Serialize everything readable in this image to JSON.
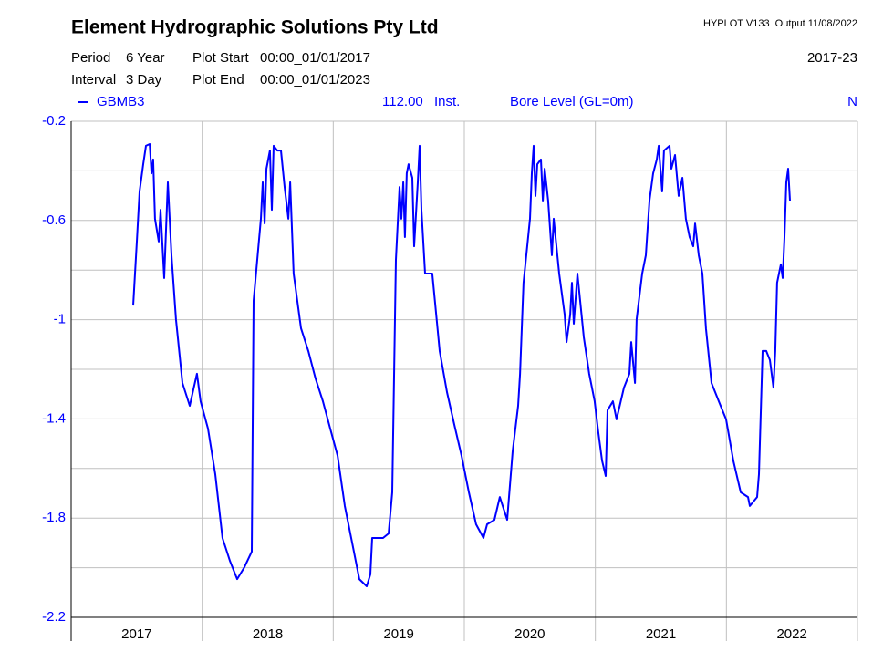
{
  "chart_data": {
    "type": "line",
    "title": "Element Hydrographic Solutions Pty Ltd",
    "software": "HYPLOT V133  Output 11/08/2022",
    "period_label": "Period",
    "period": "6 Year",
    "interval_label": "Interval",
    "interval": "3 Day",
    "plot_start_label": "Plot Start",
    "plot_start": "00:00_01/01/2017",
    "plot_end_label": "Plot End",
    "plot_end": "00:00_01/01/2023",
    "range_label": "2017-23",
    "variable_code": "112.00",
    "data_type": "Inst.",
    "variable": "Bore Level (GL=0m)",
    "flag": "N",
    "xlim": [
      2017,
      2023
    ],
    "xticks": [
      2017,
      2018,
      2019,
      2020,
      2021,
      2022
    ],
    "ylim": [
      -2.2,
      -0.2
    ],
    "yticks": [
      -0.2,
      -0.6,
      -1,
      -1.4,
      -1.8,
      -2.2
    ],
    "y_minor_ticks": [
      -0.4,
      -0.8,
      -1.2,
      -1.6,
      -2.0
    ],
    "grid": true,
    "series": [
      {
        "name": "GBMB3",
        "color": "#0000ff",
        "x": [
          2017.473,
          2017.501,
          2017.522,
          2017.55,
          2017.571,
          2017.599,
          2017.613,
          2017.626,
          2017.64,
          2017.668,
          2017.682,
          2017.71,
          2017.738,
          2017.766,
          2017.8,
          2017.849,
          2017.905,
          2017.96,
          2017.988,
          2018.044,
          2018.1,
          2018.155,
          2018.211,
          2018.267,
          2018.322,
          2018.378,
          2018.392,
          2018.448,
          2018.462,
          2018.476,
          2018.49,
          2018.517,
          2018.531,
          2018.545,
          2018.573,
          2018.601,
          2018.629,
          2018.657,
          2018.671,
          2018.698,
          2018.754,
          2018.81,
          2018.865,
          2018.921,
          2018.977,
          2019.033,
          2019.088,
          2019.144,
          2019.199,
          2019.255,
          2019.283,
          2019.297,
          2019.38,
          2019.422,
          2019.45,
          2019.478,
          2019.506,
          2019.52,
          2019.534,
          2019.547,
          2019.561,
          2019.575,
          2019.603,
          2019.617,
          2019.645,
          2019.659,
          2019.673,
          2019.701,
          2019.756,
          2019.812,
          2019.868,
          2019.923,
          2019.979,
          2020.035,
          2020.09,
          2020.146,
          2020.174,
          2020.23,
          2020.271,
          2020.327,
          2020.369,
          2020.411,
          2020.425,
          2020.452,
          2020.501,
          2020.515,
          2020.529,
          2020.543,
          2020.557,
          2020.585,
          2020.599,
          2020.613,
          2020.64,
          2020.668,
          2020.682,
          2020.724,
          2020.766,
          2020.78,
          2020.808,
          2020.821,
          2020.835,
          2020.863,
          2020.912,
          2020.953,
          2020.995,
          2021.023,
          2021.051,
          2021.079,
          2021.093,
          2021.134,
          2021.162,
          2021.218,
          2021.26,
          2021.274,
          2021.302,
          2021.315,
          2021.357,
          2021.385,
          2021.413,
          2021.441,
          2021.469,
          2021.483,
          2021.51,
          2021.524,
          2021.566,
          2021.58,
          2021.608,
          2021.636,
          2021.664,
          2021.691,
          2021.719,
          2021.747,
          2021.761,
          2021.789,
          2021.817,
          2021.844,
          2021.886,
          2021.942,
          2021.998,
          2022.053,
          2022.109,
          2022.165,
          2022.179,
          2022.234,
          2022.248,
          2022.276,
          2022.304,
          2022.332,
          2022.359,
          2022.373,
          2022.387,
          2022.415,
          2022.429,
          2022.443,
          2022.457,
          2022.471,
          2022.485
        ],
        "values": [
          -0.943,
          -0.685,
          -0.483,
          -0.373,
          -0.299,
          -0.292,
          -0.41,
          -0.354,
          -0.593,
          -0.685,
          -0.557,
          -0.832,
          -0.446,
          -0.74,
          -0.998,
          -1.255,
          -1.347,
          -1.218,
          -1.329,
          -1.439,
          -1.623,
          -1.88,
          -1.972,
          -2.046,
          -1.998,
          -1.935,
          -0.924,
          -0.593,
          -0.446,
          -0.612,
          -0.391,
          -0.318,
          -0.557,
          -0.299,
          -0.318,
          -0.318,
          -0.465,
          -0.593,
          -0.446,
          -0.814,
          -1.035,
          -1.126,
          -1.237,
          -1.329,
          -1.439,
          -1.549,
          -1.751,
          -1.899,
          -2.046,
          -2.075,
          -2.027,
          -1.88,
          -1.88,
          -1.862,
          -1.696,
          -0.759,
          -0.465,
          -0.593,
          -0.446,
          -0.667,
          -0.41,
          -0.373,
          -0.428,
          -0.704,
          -0.446,
          -0.299,
          -0.557,
          -0.814,
          -0.814,
          -1.126,
          -1.292,
          -1.421,
          -1.549,
          -1.696,
          -1.825,
          -1.88,
          -1.825,
          -1.807,
          -1.715,
          -1.807,
          -1.531,
          -1.347,
          -1.218,
          -0.851,
          -0.593,
          -0.41,
          -0.299,
          -0.501,
          -0.373,
          -0.354,
          -0.52,
          -0.391,
          -0.52,
          -0.74,
          -0.593,
          -0.814,
          -0.979,
          -1.09,
          -0.979,
          -0.851,
          -1.016,
          -0.814,
          -1.071,
          -1.218,
          -1.329,
          -1.457,
          -1.568,
          -1.63,
          -1.365,
          -1.329,
          -1.402,
          -1.274,
          -1.218,
          -1.09,
          -1.255,
          -0.998,
          -0.814,
          -0.74,
          -0.52,
          -0.41,
          -0.354,
          -0.299,
          -0.483,
          -0.318,
          -0.299,
          -0.391,
          -0.336,
          -0.501,
          -0.428,
          -0.593,
          -0.667,
          -0.704,
          -0.612,
          -0.74,
          -0.814,
          -1.035,
          -1.255,
          -1.329,
          -1.402,
          -1.568,
          -1.696,
          -1.715,
          -1.751,
          -1.715,
          -1.623,
          -1.126,
          -1.126,
          -1.163,
          -1.274,
          -1.126,
          -0.851,
          -0.777,
          -0.832,
          -0.667,
          -0.446,
          -0.391,
          -0.52
        ]
      }
    ]
  }
}
